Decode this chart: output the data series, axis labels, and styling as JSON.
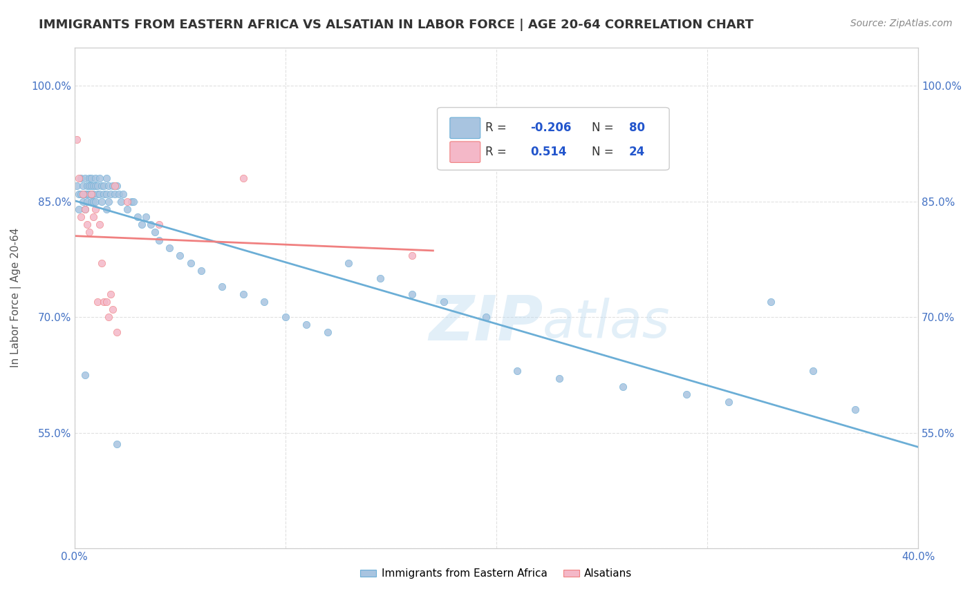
{
  "title": "IMMIGRANTS FROM EASTERN AFRICA VS ALSATIAN IN LABOR FORCE | AGE 20-64 CORRELATION CHART",
  "source": "Source: ZipAtlas.com",
  "ylabel": "In Labor Force | Age 20-64",
  "xaxis_label_bottom": "Immigrants from Eastern Africa",
  "xaxis_label_bottom2": "Alsatians",
  "x_min": 0.0,
  "x_max": 0.4,
  "y_min": 0.4,
  "y_max": 1.05,
  "x_ticks": [
    0.0,
    0.1,
    0.2,
    0.3,
    0.4
  ],
  "x_tick_labels": [
    "0.0%",
    "",
    "",
    "",
    "40.0%"
  ],
  "y_ticks": [
    0.4,
    0.55,
    0.7,
    0.85,
    1.0
  ],
  "y_tick_labels": [
    "",
    "55.0%",
    "70.0%",
    "85.0%",
    "100.0%"
  ],
  "legend_r_blue": "-0.206",
  "legend_n_blue": "80",
  "legend_r_pink": "0.514",
  "legend_n_pink": "24",
  "blue_color": "#a8c4e0",
  "pink_color": "#f4b8c8",
  "blue_line_color": "#6baed6",
  "pink_line_color": "#f08080",
  "blue_scatter_x": [
    0.001,
    0.002,
    0.002,
    0.003,
    0.003,
    0.004,
    0.004,
    0.005,
    0.005,
    0.005,
    0.006,
    0.006,
    0.006,
    0.007,
    0.007,
    0.007,
    0.008,
    0.008,
    0.008,
    0.008,
    0.009,
    0.009,
    0.009,
    0.01,
    0.01,
    0.01,
    0.011,
    0.011,
    0.012,
    0.012,
    0.013,
    0.013,
    0.014,
    0.014,
    0.015,
    0.015,
    0.015,
    0.016,
    0.016,
    0.017,
    0.018,
    0.019,
    0.02,
    0.021,
    0.022,
    0.023,
    0.025,
    0.027,
    0.028,
    0.03,
    0.032,
    0.034,
    0.036,
    0.038,
    0.04,
    0.045,
    0.05,
    0.055,
    0.06,
    0.07,
    0.08,
    0.09,
    0.1,
    0.11,
    0.12,
    0.13,
    0.145,
    0.16,
    0.175,
    0.195,
    0.21,
    0.23,
    0.26,
    0.29,
    0.31,
    0.33,
    0.35,
    0.37,
    0.005,
    0.02
  ],
  "blue_scatter_y": [
    0.87,
    0.86,
    0.84,
    0.88,
    0.86,
    0.87,
    0.85,
    0.88,
    0.86,
    0.84,
    0.87,
    0.86,
    0.85,
    0.88,
    0.87,
    0.86,
    0.88,
    0.87,
    0.86,
    0.85,
    0.87,
    0.86,
    0.85,
    0.88,
    0.87,
    0.85,
    0.87,
    0.86,
    0.88,
    0.86,
    0.87,
    0.85,
    0.87,
    0.86,
    0.88,
    0.86,
    0.84,
    0.87,
    0.85,
    0.86,
    0.87,
    0.86,
    0.87,
    0.86,
    0.85,
    0.86,
    0.84,
    0.85,
    0.85,
    0.83,
    0.82,
    0.83,
    0.82,
    0.81,
    0.8,
    0.79,
    0.78,
    0.77,
    0.76,
    0.74,
    0.73,
    0.72,
    0.7,
    0.69,
    0.68,
    0.77,
    0.75,
    0.73,
    0.72,
    0.7,
    0.63,
    0.62,
    0.61,
    0.6,
    0.59,
    0.72,
    0.63,
    0.58,
    0.625,
    0.535
  ],
  "pink_scatter_x": [
    0.001,
    0.002,
    0.003,
    0.004,
    0.005,
    0.006,
    0.007,
    0.008,
    0.009,
    0.01,
    0.011,
    0.012,
    0.013,
    0.014,
    0.015,
    0.016,
    0.017,
    0.018,
    0.019,
    0.02,
    0.025,
    0.04,
    0.08,
    0.16
  ],
  "pink_scatter_y": [
    0.93,
    0.88,
    0.83,
    0.86,
    0.84,
    0.82,
    0.81,
    0.86,
    0.83,
    0.84,
    0.72,
    0.82,
    0.77,
    0.72,
    0.72,
    0.7,
    0.73,
    0.71,
    0.87,
    0.68,
    0.85,
    0.82,
    0.88,
    0.78
  ],
  "grid_color": "#e0e0e0",
  "title_color": "#333333",
  "tick_color": "#4472c4",
  "axis_line_color": "#cccccc"
}
